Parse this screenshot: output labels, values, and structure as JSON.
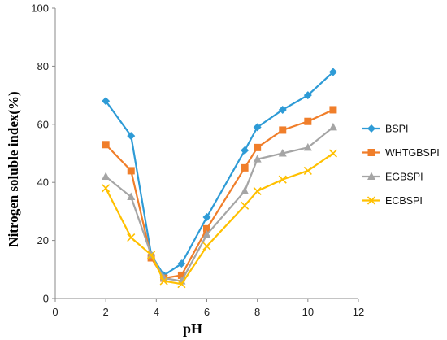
{
  "chart_data": {
    "type": "line",
    "title": "",
    "xlabel": "pH",
    "ylabel": "Nitrogen soluble index(%)",
    "xlim": [
      0,
      12
    ],
    "ylim": [
      0,
      100
    ],
    "x_ticks": [
      "0",
      "2",
      "4",
      "6",
      "8",
      "10",
      "12"
    ],
    "y_ticks": [
      "0",
      "20",
      "40",
      "60",
      "80",
      "100"
    ],
    "grid": false,
    "legend_position": "right",
    "x": [
      2,
      3,
      3.8,
      4.3,
      5,
      6,
      7.5,
      8,
      9,
      10,
      11
    ],
    "series": [
      {
        "name": "BSPI",
        "color": "#2E9BD6",
        "marker": "diamond",
        "values": [
          68,
          56,
          15,
          8,
          12,
          28,
          51,
          59,
          65,
          70,
          78
        ]
      },
      {
        "name": "WHTGBSPI",
        "color": "#F07E2A",
        "marker": "square",
        "values": [
          53,
          44,
          14,
          7,
          8,
          24,
          45,
          52,
          58,
          61,
          65
        ]
      },
      {
        "name": "EGBSPI",
        "color": "#A5A5A5",
        "marker": "triangle",
        "values": [
          42,
          35,
          15,
          7,
          6,
          22,
          37,
          48,
          50,
          52,
          59
        ]
      },
      {
        "name": "ECBSPI",
        "color": "#FFC000",
        "marker": "x",
        "values": [
          38,
          21,
          15,
          6,
          5,
          18,
          32,
          37,
          41,
          44,
          50
        ]
      }
    ]
  }
}
